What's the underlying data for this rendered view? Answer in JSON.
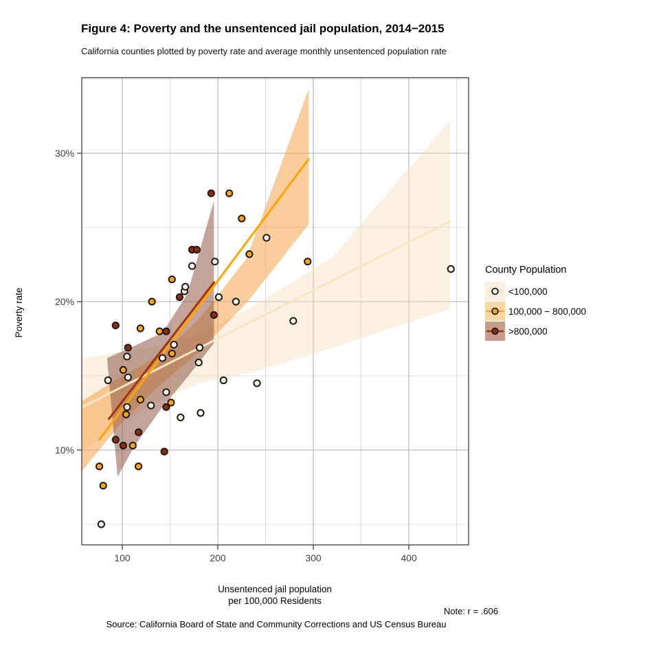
{
  "figure": {
    "title": "Figure 4: Poverty and the unsentenced jail population, 2014−2015",
    "subtitle": "California counties plotted by poverty rate and average monthly unsentenced population rate",
    "note": "Note: r = .606",
    "source": "Source: California Board of State and Community Corrections and US Census Bureau"
  },
  "chart_data": {
    "type": "scatter",
    "title": "Figure 4: Poverty and the unsentenced jail population, 2014−2015",
    "xlabel_line1": "Unsentenced jail population",
    "xlabel_line2": "per 100,000 Residents",
    "ylabel": "Poverty rate",
    "xlim": [
      57,
      463
    ],
    "ylim": [
      3.6,
      35.1
    ],
    "x_ticks": [
      100,
      200,
      300,
      400
    ],
    "x_tick_labels": [
      "100",
      "200",
      "300",
      "400"
    ],
    "x_minor_ticks": [
      150,
      250,
      350,
      450
    ],
    "y_ticks": [
      10,
      20,
      30
    ],
    "y_tick_labels": [
      "10%",
      "20%",
      "30%"
    ],
    "y_minor_ticks": [
      5,
      15,
      25,
      35
    ],
    "grid": true,
    "legend_title": "County Population",
    "legend_position": "right",
    "colors": {
      "major_grid": "#b0b0b0",
      "minor_grid": "#dcdcdc",
      "panel_border": "#3c3c3c",
      "point_stroke": "#1a1a1a"
    },
    "series": [
      {
        "name": "<100,000",
        "point_fill": "#FDF5E6",
        "line_color": "#F8E6C4",
        "band_fill": "#F5DEBB",
        "band_opacity": 0.42,
        "swatch_bg": "#FBF0E1",
        "trend": [
          [
            58,
            12.9
          ],
          [
            443,
            25.4
          ]
        ],
        "band": [
          [
            58,
            16.2
          ],
          [
            100,
            16.6
          ],
          [
            140,
            17.0
          ],
          [
            180,
            17.8
          ],
          [
            240,
            19.8
          ],
          [
            320,
            23.0
          ],
          [
            443,
            32.2
          ],
          [
            443,
            19.5
          ],
          [
            320,
            16.9
          ],
          [
            240,
            15.3
          ],
          [
            180,
            14.5
          ],
          [
            140,
            13.4
          ],
          [
            100,
            11.9
          ],
          [
            58,
            9.9
          ]
        ],
        "points": [
          [
            78,
            5.0
          ],
          [
            85,
            14.7
          ],
          [
            106,
            14.9
          ],
          [
            105,
            16.3
          ],
          [
            142,
            16.2
          ],
          [
            154,
            17.1
          ],
          [
            105,
            12.9
          ],
          [
            130,
            13.0
          ],
          [
            146,
            13.9
          ],
          [
            161,
            12.2
          ],
          [
            182,
            12.5
          ],
          [
            165,
            20.7
          ],
          [
            166,
            21.0
          ],
          [
            173,
            22.4
          ],
          [
            197,
            22.7
          ],
          [
            251,
            24.3
          ],
          [
            279,
            18.7
          ],
          [
            219,
            20.0
          ],
          [
            201,
            20.3
          ],
          [
            180,
            15.9
          ],
          [
            181,
            16.9
          ],
          [
            206,
            14.7
          ],
          [
            241,
            14.5
          ],
          [
            444,
            22.2
          ]
        ]
      },
      {
        "name": "100,000 − 800,000",
        "point_fill": "#FFA512",
        "line_color": "#FFA400",
        "band_fill": "#F6A041",
        "band_opacity": 0.52,
        "swatch_bg": "#FAD8A4",
        "trend": [
          [
            76,
            10.7
          ],
          [
            295,
            29.6
          ]
        ],
        "band": [
          [
            58,
            13.3
          ],
          [
            100,
            15.0
          ],
          [
            140,
            16.4
          ],
          [
            180,
            18.8
          ],
          [
            230,
            22.9
          ],
          [
            295,
            34.3
          ],
          [
            295,
            25.2
          ],
          [
            230,
            19.9
          ],
          [
            180,
            16.6
          ],
          [
            140,
            14.4
          ],
          [
            100,
            11.9
          ],
          [
            58,
            8.6
          ]
        ],
        "points": [
          [
            76,
            8.9
          ],
          [
            80,
            7.6
          ],
          [
            111,
            10.3
          ],
          [
            117,
            8.9
          ],
          [
            101,
            15.4
          ],
          [
            119,
            18.2
          ],
          [
            131,
            20.0
          ],
          [
            139,
            18.0
          ],
          [
            152,
            16.5
          ],
          [
            119,
            13.4
          ],
          [
            104,
            12.4
          ],
          [
            151,
            13.2
          ],
          [
            152,
            21.5
          ],
          [
            212,
            27.3
          ],
          [
            225,
            25.6
          ],
          [
            233,
            23.2
          ],
          [
            294,
            22.7
          ]
        ]
      },
      {
        "name": ">800,000",
        "point_fill": "#942A00",
        "line_color": "#A53201",
        "band_fill": "#8F5A49",
        "band_opacity": 0.55,
        "swatch_bg": "#C69C8D",
        "trend": [
          [
            86,
            12.1
          ],
          [
            196,
            21.3
          ]
        ],
        "band": [
          [
            84,
            16.2
          ],
          [
            112,
            17.0
          ],
          [
            142,
            17.9
          ],
          [
            168,
            20.5
          ],
          [
            196,
            26.8
          ],
          [
            196,
            17.2
          ],
          [
            168,
            14.9
          ],
          [
            142,
            12.9
          ],
          [
            112,
            10.2
          ],
          [
            95,
            8.2
          ]
        ],
        "points": [
          [
            93,
            18.4
          ],
          [
            93,
            10.7
          ],
          [
            101,
            10.3
          ],
          [
            117,
            11.2
          ],
          [
            144,
            9.9
          ],
          [
            106,
            16.9
          ],
          [
            146,
            18.0
          ],
          [
            146,
            12.9
          ],
          [
            160,
            20.3
          ],
          [
            173,
            23.5
          ],
          [
            178,
            23.5
          ],
          [
            193,
            27.3
          ],
          [
            196,
            19.1
          ]
        ]
      }
    ]
  }
}
